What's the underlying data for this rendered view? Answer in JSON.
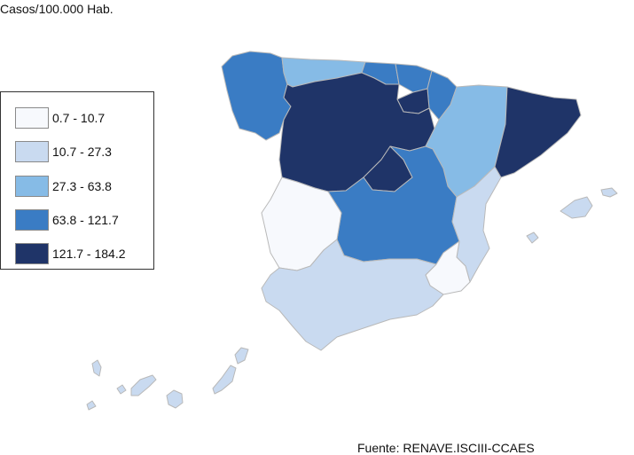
{
  "unit_label": "Casos/100.000 Hab.",
  "source": "Fuente: RENAVE.ISCIII-CCAES",
  "legend": [
    {
      "label": "0.7  - 10.7",
      "color": "#f7f9fd"
    },
    {
      "label": "10.7  - 27.3",
      "color": "#c9daf0"
    },
    {
      "label": "27.3  - 63.8",
      "color": "#86bbe6"
    },
    {
      "label": "63.8  - 121.7",
      "color": "#3a7cc4"
    },
    {
      "label": "121.7  - 184.2",
      "color": "#1f3468"
    }
  ]
}
